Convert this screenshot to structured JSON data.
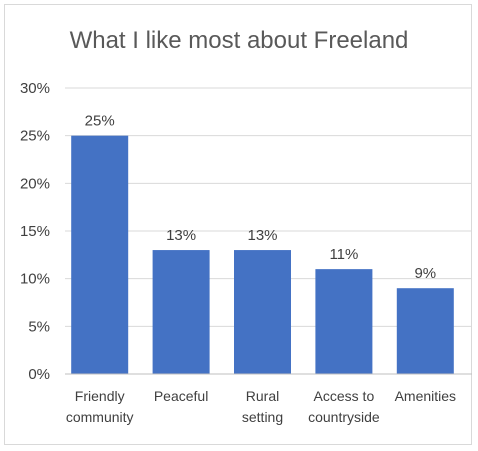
{
  "colors": {
    "bar": "#4472C4",
    "frame": "#d9d9d9"
  },
  "chart_data": {
    "type": "bar",
    "title": "What I like most about Freeland",
    "xlabel": "",
    "ylabel": "",
    "categories": [
      [
        "Friendly",
        "community"
      ],
      [
        "Peaceful"
      ],
      [
        "Rural",
        "setting"
      ],
      [
        "Access to",
        "countryside"
      ],
      [
        "Amenities"
      ]
    ],
    "values": [
      25,
      13,
      13,
      11,
      9
    ],
    "value_labels": [
      "25%",
      "13%",
      "13%",
      "11%",
      "9%"
    ],
    "ylim": [
      0,
      30
    ],
    "yticks": [
      0,
      5,
      10,
      15,
      20,
      25,
      30
    ],
    "ytick_labels": [
      "0%",
      "5%",
      "10%",
      "15%",
      "20%",
      "25%",
      "30%"
    ],
    "grid": true,
    "legend": "none"
  }
}
